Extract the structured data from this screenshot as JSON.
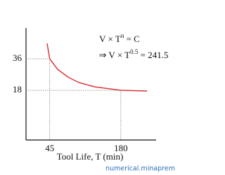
{
  "chart_data": {
    "type": "line",
    "x_label": "Tool Life, T (min)",
    "x": [
      40,
      45,
      60,
      80,
      100,
      130,
      180,
      230
    ],
    "series": [
      {
        "color": "#d9383a",
        "values": [
          44.8,
          36,
          30,
          25.5,
          22.5,
          20,
          18,
          17.6
        ]
      }
    ],
    "xlim": [
      0,
      247
    ],
    "ylim": [
      -10.4,
      53.6
    ],
    "xticks": [
      45,
      180
    ],
    "yticks": [
      36,
      18
    ],
    "annotations": [
      {
        "base": "V × T",
        "sup": "n",
        "rest": " =  C"
      },
      {
        "base": "⇒ V × T",
        "sup": "0.5",
        "rest": " = 241.5"
      }
    ],
    "watermark": "numerical.minaprem"
  }
}
